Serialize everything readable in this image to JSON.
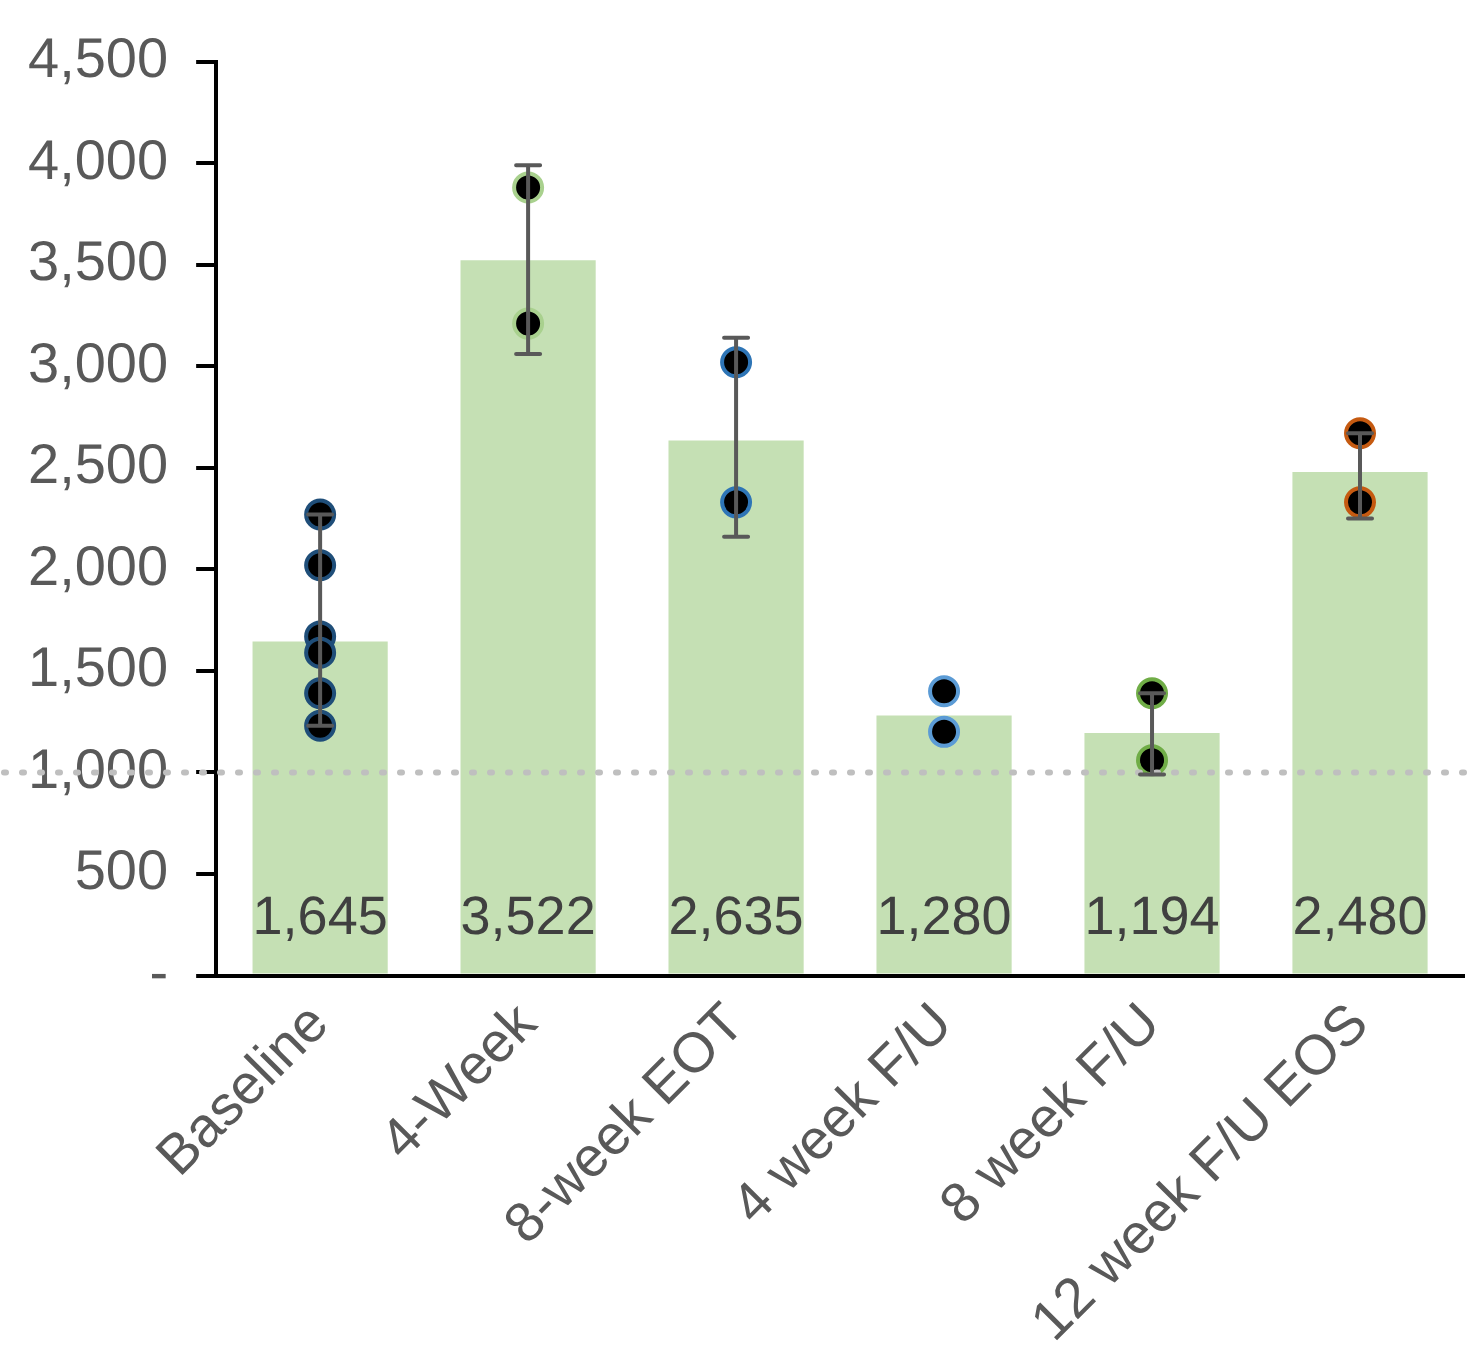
{
  "chart_data": {
    "type": "bar",
    "categories": [
      "Baseline",
      "4-Week",
      "8-week EOT",
      "4 week F/U",
      "8 week F/U",
      "12 week F/U EOS"
    ],
    "series": [
      {
        "color": "#c5e0b4",
        "values": [
          1645,
          3522,
          2635,
          1280,
          1194,
          2480
        ],
        "value_labels": [
          "1,645",
          "3,522",
          "2,635",
          "1,280",
          "1,194",
          "2,480"
        ],
        "errors": [
          [
            1230,
            2270
          ],
          [
            3060,
            3990
          ],
          [
            2160,
            3140
          ],
          null,
          [
            990,
            1390
          ],
          [
            2250,
            2670
          ]
        ]
      },
      {
        "type": "scatter",
        "x": [
          "Baseline",
          "Baseline",
          "Baseline",
          "Baseline",
          "Baseline",
          "Baseline",
          "4-Week",
          "4-Week",
          "8-week EOT",
          "8-week EOT",
          "4 week F/U",
          "4 week F/U",
          "8 week F/U",
          "8 week F/U",
          "12 week F/U EOS",
          "12 week F/U EOS"
        ],
        "values": [
          2270,
          2020,
          1670,
          1590,
          1390,
          1230,
          3880,
          3210,
          3020,
          2330,
          1400,
          1200,
          1390,
          1060,
          2670,
          2330
        ],
        "colors": [
          "#1f4e79",
          "#1f4e79",
          "#1f4e79",
          "#1f4e79",
          "#1f4e79",
          "#1f4e79",
          "#a9d18e",
          "#a9d18e",
          "#2e75b6",
          "#2e75b6",
          "#5b9bd5",
          "#5b9bd5",
          "#70ad47",
          "#70ad47",
          "#c55a11",
          "#c55a11"
        ]
      }
    ],
    "ylim": [
      0,
      4500
    ],
    "yticks": [
      {
        "value": 0,
        "label": "-"
      },
      500,
      {
        "value": 1000,
        "label": "1,000"
      },
      {
        "value": 1500,
        "label": "1,500"
      },
      {
        "value": 2000,
        "label": "2,000"
      },
      {
        "value": 2500,
        "label": "2,500"
      },
      {
        "value": 3000,
        "label": "3,000"
      },
      {
        "value": 3500,
        "label": "3,500"
      },
      {
        "value": 4000,
        "label": "4,000"
      },
      {
        "value": 4500,
        "label": "4,500"
      }
    ],
    "grid": false,
    "legend": false,
    "marker": "circle",
    "ref_lines": [
      {
        "axis": "y",
        "value": 1000,
        "color": "#bfbfbf",
        "line_style": "dotted"
      }
    ]
  }
}
